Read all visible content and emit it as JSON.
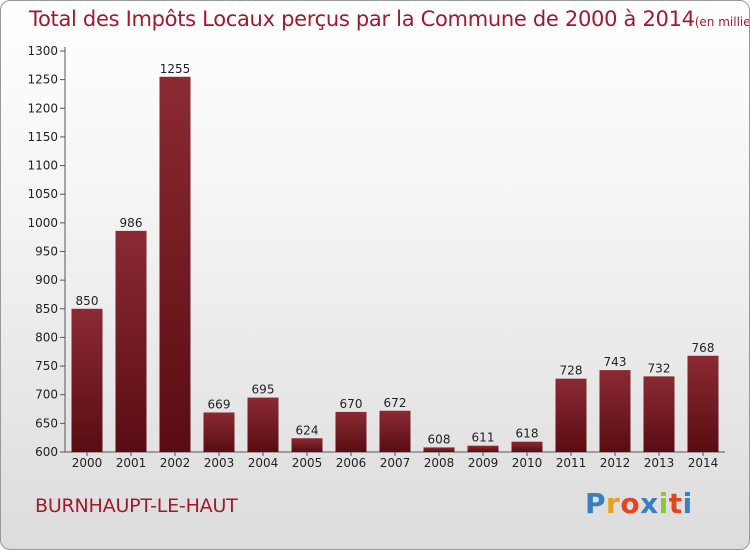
{
  "chart_data": {
    "type": "bar",
    "title": "Total des Impôts Locaux perçus par la Commune de 2000 à 2014",
    "unit_note": "(en milliers d'€)",
    "categories": [
      "2000",
      "2001",
      "2002",
      "2003",
      "2004",
      "2005",
      "2006",
      "2007",
      "2008",
      "2009",
      "2010",
      "2011",
      "2012",
      "2013",
      "2014"
    ],
    "values": [
      850,
      986,
      1255,
      669,
      695,
      624,
      670,
      672,
      608,
      611,
      618,
      728,
      743,
      732,
      768
    ],
    "ylim": [
      600,
      1300
    ],
    "yticks": [
      600,
      650,
      700,
      750,
      800,
      850,
      900,
      950,
      1000,
      1050,
      1100,
      1150,
      1200,
      1250,
      1300
    ],
    "xlabel": "",
    "ylabel": "",
    "grid": false,
    "bar_color_top": "#8b2a33",
    "bar_color_bottom": "#5a0c12"
  },
  "footer": {
    "commune": "BURNHAUPT-LE-HAUT",
    "logo_text": "Proxiti",
    "logo_colors": [
      "#3a7fc1",
      "#e8a21a",
      "#e2451f",
      "#3a7fc1",
      "#8cc63f",
      "#e2451f",
      "#3a7fc1"
    ]
  }
}
